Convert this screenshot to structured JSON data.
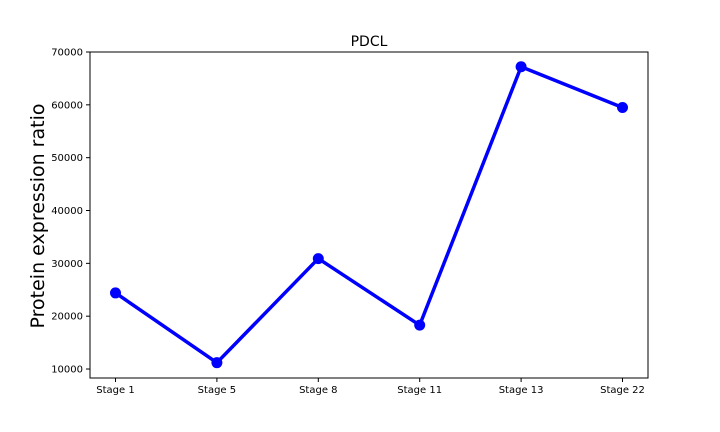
{
  "chart_data": {
    "type": "line",
    "title": "PDCL",
    "xlabel": "",
    "ylabel": "Protein expression ratio",
    "categories": [
      "Stage 1",
      "Stage 5",
      "Stage 8",
      "Stage 11",
      "Stage 13",
      "Stage 22"
    ],
    "series": [
      {
        "values": [
          24400,
          11200,
          30900,
          18300,
          67200,
          59500
        ],
        "color": "#0000ff",
        "marker": "circle"
      }
    ],
    "yticks": [
      10000,
      20000,
      30000,
      40000,
      50000,
      60000,
      70000
    ],
    "ylim": [
      8300,
      70000
    ],
    "grid": false,
    "legend": "none"
  }
}
